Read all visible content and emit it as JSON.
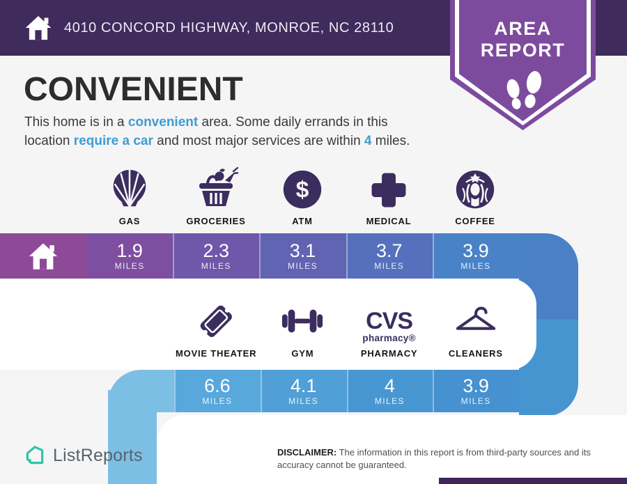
{
  "header": {
    "address": "4010 CONCORD HIGHWAY, MONROE, NC 28110"
  },
  "badge": {
    "title_line1": "AREA",
    "title_line2": "REPORT",
    "icon": "footprints-icon"
  },
  "headline": {
    "title": "CONVENIENT",
    "lines": [
      [
        {
          "t": "This home is in a "
        },
        {
          "t": "convenient",
          "hl": true
        },
        {
          "t": " area. Some daily errands in this"
        }
      ],
      [
        {
          "t": "location "
        },
        {
          "t": "require a car",
          "hl": true
        },
        {
          "t": " and most major services are within "
        },
        {
          "t": "4",
          "hl": true
        },
        {
          "t": " miles."
        }
      ]
    ]
  },
  "amenities_row1": [
    {
      "icon": "shell-gas-icon",
      "label": "GAS",
      "miles": "1.9",
      "unit": "MILES"
    },
    {
      "icon": "groceries-basket-icon",
      "label": "GROCERIES",
      "miles": "2.3",
      "unit": "MILES"
    },
    {
      "icon": "atm-dollar-icon",
      "label": "ATM",
      "miles": "3.1",
      "unit": "MILES"
    },
    {
      "icon": "medical-cross-icon",
      "label": "MEDICAL",
      "miles": "3.7",
      "unit": "MILES"
    },
    {
      "icon": "starbucks-coffee-icon",
      "label": "COFFEE",
      "miles": "3.9",
      "unit": "MILES"
    }
  ],
  "amenities_row2": [
    {
      "icon": "movie-ticket-icon",
      "label": "MOVIE THEATER",
      "miles": "6.6",
      "unit": "MILES"
    },
    {
      "icon": "gym-dumbbell-icon",
      "label": "GYM",
      "miles": "4.1",
      "unit": "MILES"
    },
    {
      "icon": "cvs-pharmacy-icon",
      "label": "PHARMACY",
      "miles": "4",
      "unit": "MILES",
      "logo_main": "CVS",
      "logo_sub": "pharmacy®"
    },
    {
      "icon": "hanger-cleaners-icon",
      "label": "CLEANERS",
      "miles": "3.9",
      "unit": "MILES"
    }
  ],
  "footer": {
    "brand": "ListReports",
    "brand_icon": "listreports-house-icon",
    "disclaimer_label": "DISCLAIMER:",
    "disclaimer_text": " The information in this report is from third-party sources and its accuracy cannot be guaranteed."
  },
  "colors": {
    "header_bg": "#3f2b5c",
    "badge_purple": "#7d4b9e",
    "accent_blue": "#3d9dd4",
    "icon_purple": "#3b2d5e",
    "bar1_home": "#8d4a97",
    "bar1_cells": [
      "#7e4fa1",
      "#6f58a9",
      "#6163b3",
      "#5570bd",
      "#4a82c8"
    ],
    "right_col_top": "#4a80c5",
    "right_col_bottom": "#4695d0",
    "bar2_connector": "#7cbfe5",
    "bar2_cells": [
      "#58a8dc",
      "#509fd7",
      "#4897d2",
      "#4691cf"
    ],
    "left_col": "#7cbfe5"
  }
}
